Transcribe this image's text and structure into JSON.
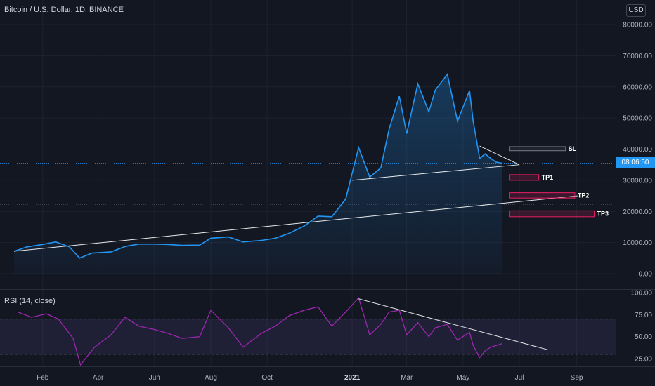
{
  "header": {
    "title": "Bitcoin / U.S. Dollar, 1D, BINANCE",
    "currency": "USD",
    "price_tag": "08:06:50"
  },
  "rsi_panel": {
    "title": "RSI (14, close)"
  },
  "colors": {
    "background": "#131722",
    "price_line": "#2196f3",
    "rsi_line": "#9c27b0",
    "rsi_band": "#7e57c2",
    "tp_border": "#e91e63",
    "trend_line": "#ffffff"
  },
  "chart_data": [
    {
      "type": "area",
      "title": "Bitcoin / U.S. Dollar, 1D, BINANCE",
      "x_ticks": [
        "Feb",
        "Apr",
        "Jun",
        "Aug",
        "Oct",
        "2021",
        "Mar",
        "May",
        "Jul",
        "Sep"
      ],
      "y_ticks": [
        "80000.00",
        "70000.00",
        "60000.00",
        "50000.00",
        "40000.00",
        "30000.00",
        "20000.00",
        "10000.00",
        "0.00"
      ],
      "ylim": [
        -3000,
        85000
      ],
      "xlim": [
        "2020-01-01",
        "2021-10-01"
      ],
      "series": [
        {
          "values": [
            [
              "2020-01-01",
              7200
            ],
            [
              "2020-01-15",
              8600
            ],
            [
              "2020-02-01",
              9400
            ],
            [
              "2020-02-15",
              10200
            ],
            [
              "2020-03-01",
              8600
            ],
            [
              "2020-03-12",
              5000
            ],
            [
              "2020-03-25",
              6600
            ],
            [
              "2020-04-15",
              7000
            ],
            [
              "2020-05-01",
              8800
            ],
            [
              "2020-05-15",
              9500
            ],
            [
              "2020-06-01",
              9500
            ],
            [
              "2020-06-15",
              9400
            ],
            [
              "2020-07-01",
              9100
            ],
            [
              "2020-07-20",
              9200
            ],
            [
              "2020-08-01",
              11400
            ],
            [
              "2020-08-20",
              11800
            ],
            [
              "2020-09-05",
              10200
            ],
            [
              "2020-09-25",
              10700
            ],
            [
              "2020-10-10",
              11400
            ],
            [
              "2020-10-25",
              13000
            ],
            [
              "2020-11-10",
              15300
            ],
            [
              "2020-11-25",
              18500
            ],
            [
              "2020-12-10",
              18300
            ],
            [
              "2020-12-25",
              24000
            ],
            [
              "2021-01-08",
              40500
            ],
            [
              "2021-01-20",
              31000
            ],
            [
              "2021-02-01",
              34000
            ],
            [
              "2021-02-10",
              46500
            ],
            [
              "2021-02-21",
              57000
            ],
            [
              "2021-03-01",
              45000
            ],
            [
              "2021-03-13",
              61000
            ],
            [
              "2021-03-25",
              52000
            ],
            [
              "2021-04-01",
              59000
            ],
            [
              "2021-04-14",
              64000
            ],
            [
              "2021-04-25",
              49000
            ],
            [
              "2021-05-08",
              58800
            ],
            [
              "2021-05-12",
              49000
            ],
            [
              "2021-05-19",
              37000
            ],
            [
              "2021-05-25",
              38500
            ],
            [
              "2021-05-31",
              37000
            ],
            [
              "2021-06-06",
              35800
            ],
            [
              "2021-06-12",
              35500
            ]
          ]
        }
      ],
      "annotations": [
        {
          "label": "SL",
          "price_low": 39500,
          "price_high": 40800,
          "start": "2021-06-20",
          "end": "2021-08-20"
        },
        {
          "label": "TP1",
          "price_low": 30000,
          "price_high": 31800,
          "start": "2021-06-20",
          "end": "2021-07-22"
        },
        {
          "label": "TP2",
          "price_low": 24300,
          "price_high": 26000,
          "start": "2021-06-20",
          "end": "2021-08-30"
        },
        {
          "label": "TP3",
          "price_low": 18300,
          "price_high": 20200,
          "start": "2021-06-20",
          "end": "2021-09-20"
        }
      ],
      "trend_lines": [
        {
          "from": [
            "2020-01-01",
            7200
          ],
          "to": [
            "2021-09-02",
            25000
          ]
        },
        {
          "from": [
            "2021-01-01",
            30000
          ],
          "to": [
            "2021-07-01",
            35000
          ]
        },
        {
          "from": [
            "2021-05-19",
            41000
          ],
          "to": [
            "2021-07-01",
            35000
          ]
        }
      ],
      "h_lines": [
        35500,
        22300
      ]
    },
    {
      "type": "line",
      "title": "RSI (14, close)",
      "y_ticks": [
        "100.00",
        "75.00",
        "50.00",
        "25.00"
      ],
      "ylim": [
        15,
        100
      ],
      "band": [
        30,
        70
      ],
      "series": [
        {
          "values": [
            [
              "2020-01-05",
              78
            ],
            [
              "2020-01-20",
              72
            ],
            [
              "2020-02-05",
              76
            ],
            [
              "2020-02-18",
              70
            ],
            [
              "2020-03-05",
              48
            ],
            [
              "2020-03-13",
              18
            ],
            [
              "2020-03-28",
              38
            ],
            [
              "2020-04-15",
              52
            ],
            [
              "2020-04-30",
              72
            ],
            [
              "2020-05-15",
              62
            ],
            [
              "2020-06-01",
              58
            ],
            [
              "2020-06-15",
              54
            ],
            [
              "2020-07-01",
              48
            ],
            [
              "2020-07-20",
              50
            ],
            [
              "2020-08-01",
              80
            ],
            [
              "2020-08-20",
              60
            ],
            [
              "2020-09-05",
              38
            ],
            [
              "2020-09-25",
              54
            ],
            [
              "2020-10-10",
              62
            ],
            [
              "2020-10-25",
              74
            ],
            [
              "2020-11-10",
              80
            ],
            [
              "2020-11-25",
              84
            ],
            [
              "2020-12-10",
              62
            ],
            [
              "2020-12-25",
              78
            ],
            [
              "2021-01-08",
              94
            ],
            [
              "2021-01-20",
              52
            ],
            [
              "2021-02-01",
              64
            ],
            [
              "2021-02-10",
              78
            ],
            [
              "2021-02-21",
              80
            ],
            [
              "2021-03-01",
              52
            ],
            [
              "2021-03-13",
              66
            ],
            [
              "2021-03-25",
              50
            ],
            [
              "2021-04-01",
              60
            ],
            [
              "2021-04-14",
              64
            ],
            [
              "2021-04-25",
              46
            ],
            [
              "2021-05-08",
              55
            ],
            [
              "2021-05-12",
              40
            ],
            [
              "2021-05-19",
              26
            ],
            [
              "2021-05-25",
              34
            ],
            [
              "2021-05-31",
              38
            ],
            [
              "2021-06-06",
              40
            ],
            [
              "2021-06-12",
              42
            ]
          ]
        }
      ],
      "trend_lines": [
        {
          "from": [
            "2021-01-08",
            93
          ],
          "to": [
            "2021-08-01",
            35
          ]
        }
      ]
    }
  ]
}
